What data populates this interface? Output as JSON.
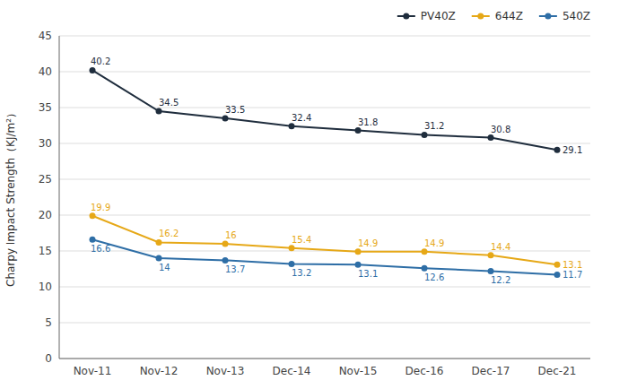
{
  "chart_data": {
    "type": "line",
    "y_label": "Charpy Impact Strength（KJ/m²）",
    "categories": [
      "Nov-11",
      "Nov-12",
      "Nov-13",
      "Dec-14",
      "Nov-15",
      "Dec-16",
      "Dec-17",
      "Dec-21"
    ],
    "series": [
      {
        "name": "PV40Z",
        "color": "#1f2d3d",
        "marker": "circle",
        "values": [
          40.2,
          34.5,
          33.5,
          32.4,
          31.8,
          31.2,
          30.8,
          29.1
        ]
      },
      {
        "name": "644Z",
        "color": "#e6a817",
        "marker": "circle",
        "values": [
          19.9,
          16.2,
          16.0,
          15.4,
          14.9,
          14.9,
          14.4,
          13.1
        ]
      },
      {
        "name": "540Z",
        "color": "#2e6ea6",
        "marker": "circle",
        "values": [
          16.6,
          14.0,
          13.7,
          13.2,
          13.1,
          12.6,
          12.2,
          11.7
        ]
      }
    ],
    "ylim": [
      0,
      45
    ],
    "yticks": [
      0,
      5,
      10,
      15,
      20,
      25,
      30,
      35,
      40,
      45
    ],
    "grid": true,
    "legend": "upper right",
    "data_labels": true
  }
}
